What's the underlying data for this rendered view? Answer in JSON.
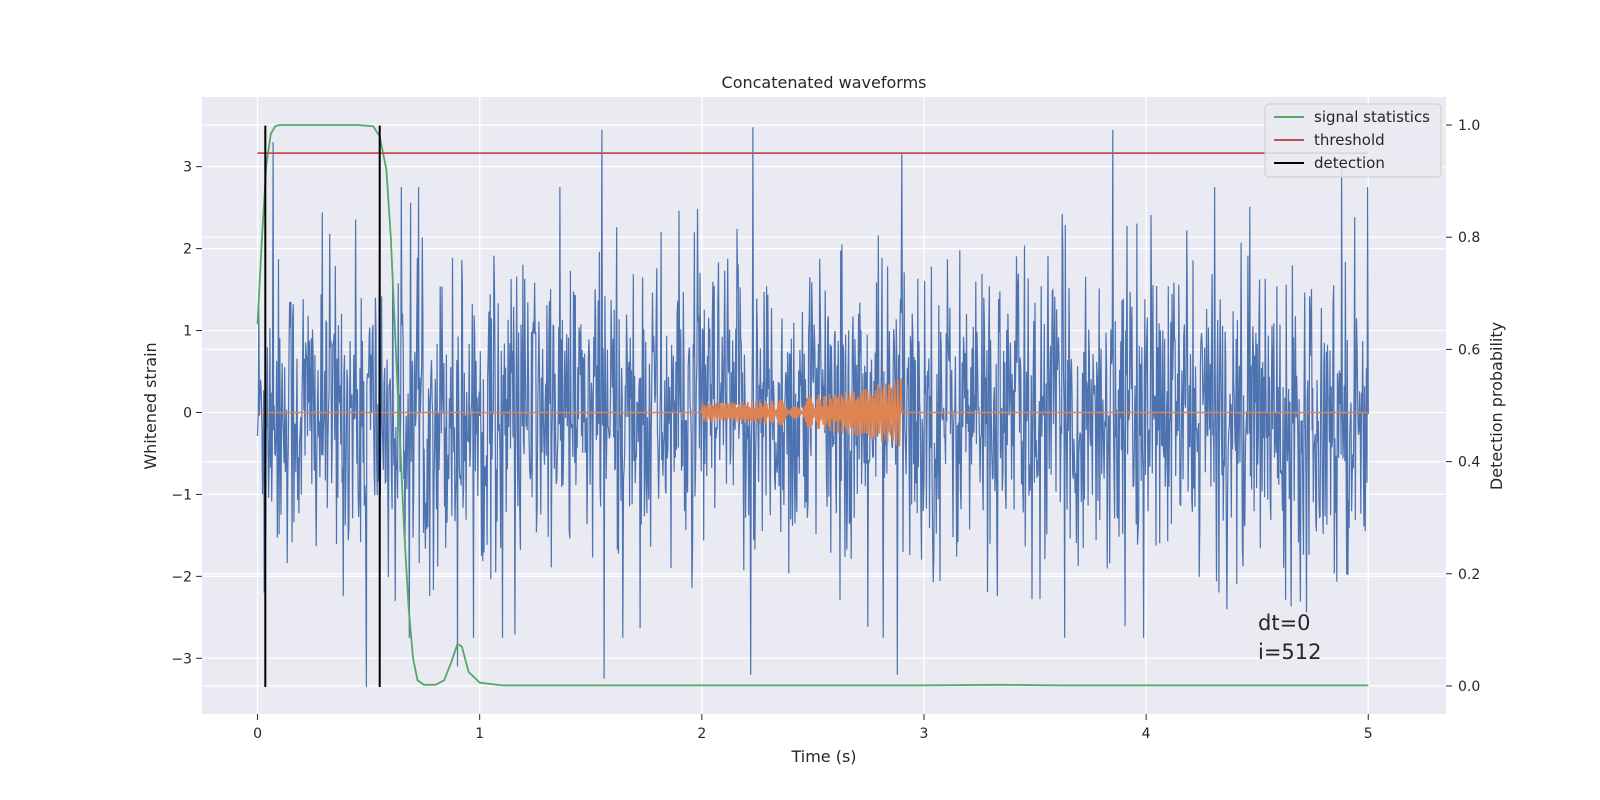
{
  "chart_data": {
    "type": "line",
    "title": "Concatenated waveforms",
    "xlabel": "Time (s)",
    "ylabel_left": "Whitened strain",
    "ylabel_right": "Detection probability",
    "xlim": [
      -0.25,
      5.35
    ],
    "ylim_left": [
      -3.68,
      3.85
    ],
    "ylim_right": [
      -0.05,
      1.05
    ],
    "x_ticks": [
      0,
      1,
      2,
      3,
      4,
      5
    ],
    "x_tick_labels": [
      "0",
      "1",
      "2",
      "3",
      "4",
      "5"
    ],
    "y_ticks_left": [
      -3,
      -2,
      -1,
      0,
      1,
      2,
      3
    ],
    "y_tick_labels_left": [
      "−3",
      "−2",
      "−1",
      "0",
      "1",
      "2",
      "3"
    ],
    "y_ticks_right": [
      0.0,
      0.2,
      0.4,
      0.6,
      0.8,
      1.0
    ],
    "y_tick_labels_right": [
      "0.0",
      "0.2",
      "0.4",
      "0.6",
      "0.8",
      "1.0"
    ],
    "grid": true,
    "legend_placement": "top-right",
    "background": "#EAEAF2",
    "series": [
      {
        "name": "",
        "axis": "left",
        "color": "#4C72B0",
        "kind": "noise",
        "x_range": [
          0,
          5
        ],
        "typical_envelope": 2.2,
        "peak_x": [
          0.03,
          0.07,
          0.49,
          0.55,
          0.62,
          0.9,
          1.55,
          1.56,
          2.22,
          2.23,
          2.9,
          2.88,
          3.85,
          4.88
        ],
        "peak_y": [
          -2.2,
          3.3,
          -3.35,
          2.2,
          -2.3,
          -3.1,
          3.45,
          -3.25,
          -3.2,
          3.48,
          3.15,
          -3.2,
          3.45,
          3.0
        ]
      },
      {
        "name": "",
        "axis": "left",
        "color": "#DD8452",
        "kind": "chirp",
        "flat_range": [
          0,
          5
        ],
        "chirp_start": 2.0,
        "chirp_end": 2.9,
        "amp_start": 0.12,
        "amp_end": 0.42
      },
      {
        "name": "signal statistics",
        "axis": "right",
        "color": "#55A868",
        "x": [
          0.0,
          0.02,
          0.04,
          0.06,
          0.08,
          0.1,
          0.15,
          0.3,
          0.45,
          0.52,
          0.55,
          0.58,
          0.6,
          0.62,
          0.64,
          0.66,
          0.68,
          0.7,
          0.72,
          0.75,
          0.8,
          0.84,
          0.87,
          0.9,
          0.92,
          0.95,
          1.0,
          1.1,
          1.5,
          2.0,
          2.5,
          3.0,
          3.35,
          3.6,
          4.0,
          4.5,
          5.0
        ],
        "values": [
          0.645,
          0.8,
          0.93,
          0.985,
          0.998,
          1.0,
          1.0,
          1.0,
          1.0,
          0.998,
          0.98,
          0.92,
          0.8,
          0.62,
          0.45,
          0.28,
          0.14,
          0.05,
          0.01,
          0.002,
          0.002,
          0.01,
          0.04,
          0.075,
          0.07,
          0.025,
          0.006,
          0.001,
          0.001,
          0.001,
          0.001,
          0.001,
          0.002,
          0.001,
          0.001,
          0.001,
          0.001
        ]
      },
      {
        "name": "threshold",
        "axis": "right",
        "color": "#C44E52",
        "x": [
          0,
          5
        ],
        "values": [
          0.95,
          0.95
        ]
      },
      {
        "name": "detection",
        "axis": "left",
        "color": "#000000",
        "kind": "vlines",
        "x": [
          0.035,
          0.55
        ],
        "ymin": -3.35,
        "ymax": 3.5
      }
    ],
    "annotations": [
      "dt=0",
      "i=512"
    ]
  }
}
